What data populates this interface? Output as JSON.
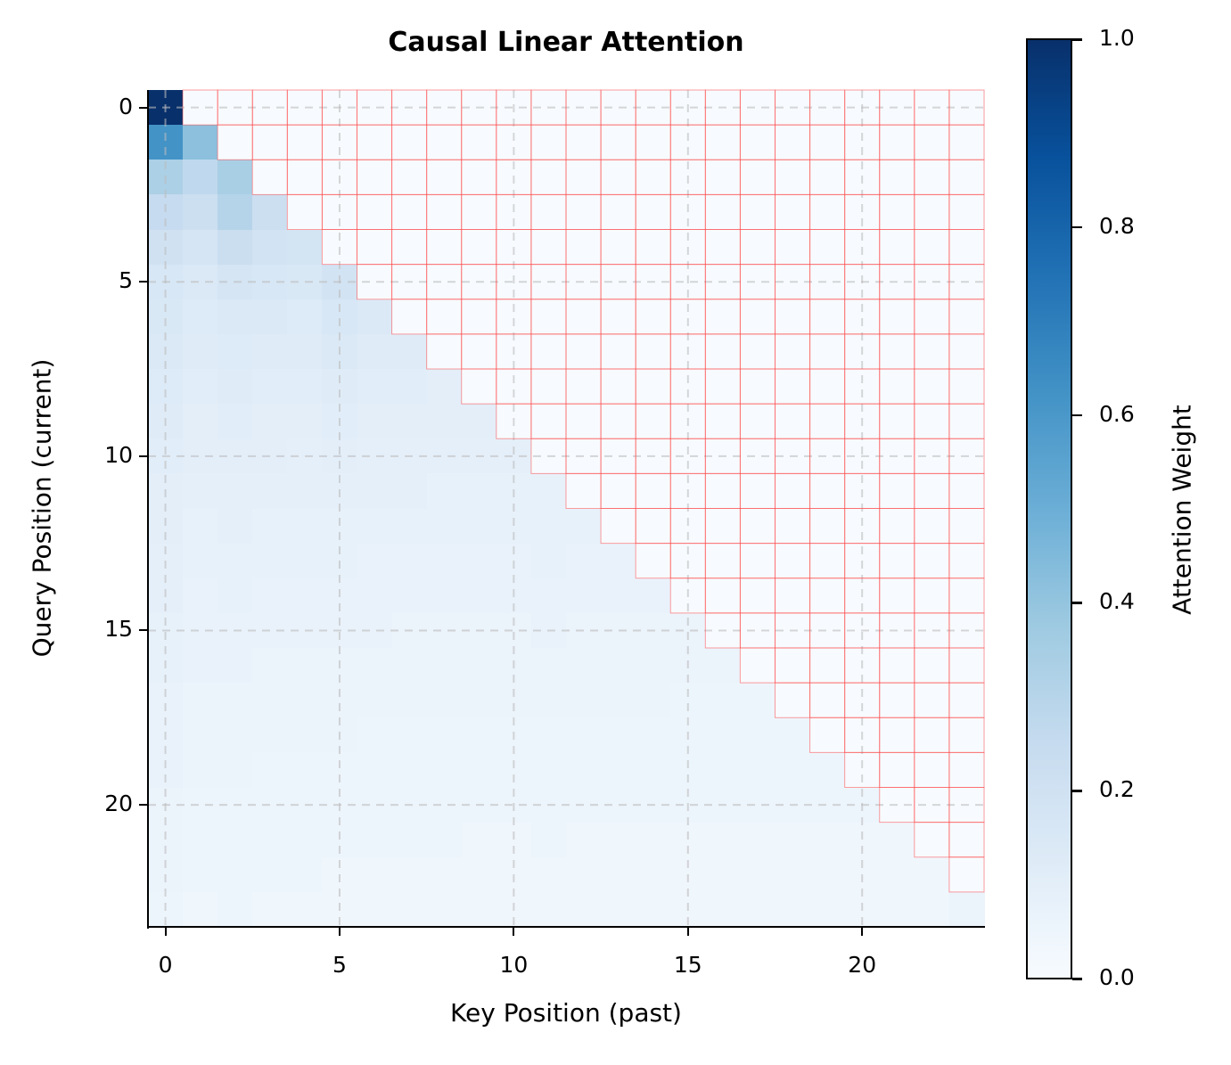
{
  "chart_data": {
    "type": "heatmap",
    "title": "Causal Linear Attention",
    "xlabel": "Key Position (past)",
    "ylabel": "Query Position (current)",
    "x_ticks": [
      0,
      5,
      10,
      15,
      20
    ],
    "y_ticks": [
      0,
      5,
      10,
      15,
      20
    ],
    "size": 24,
    "colormap": "Blues",
    "colorbar": {
      "label": "Attention Weight",
      "ticks": [
        "0.0",
        "0.2",
        "0.4",
        "0.6",
        "0.8",
        "1.0"
      ],
      "range": [
        0.0,
        1.0
      ]
    },
    "grid": {
      "on": true,
      "style": "dashed",
      "color": "#d0d0d0"
    },
    "masked_region": {
      "description": "upper triangle (future keys) masked",
      "edge_color": "#ff4d4d",
      "fill": "#f7fbff"
    },
    "values": [
      [
        1.0
      ],
      [
        0.62,
        0.42
      ],
      [
        0.33,
        0.27,
        0.34
      ],
      [
        0.25,
        0.22,
        0.3,
        0.22
      ],
      [
        0.2,
        0.17,
        0.23,
        0.19,
        0.18
      ],
      [
        0.16,
        0.14,
        0.17,
        0.16,
        0.15,
        0.19
      ],
      [
        0.15,
        0.13,
        0.14,
        0.14,
        0.13,
        0.16,
        0.14
      ],
      [
        0.14,
        0.12,
        0.13,
        0.12,
        0.12,
        0.14,
        0.12,
        0.12
      ],
      [
        0.13,
        0.11,
        0.12,
        0.11,
        0.11,
        0.12,
        0.11,
        0.11,
        0.1
      ],
      [
        0.12,
        0.1,
        0.11,
        0.1,
        0.1,
        0.11,
        0.1,
        0.1,
        0.1,
        0.1
      ],
      [
        0.11,
        0.1,
        0.1,
        0.1,
        0.09,
        0.1,
        0.09,
        0.09,
        0.09,
        0.09,
        0.09
      ],
      [
        0.1,
        0.09,
        0.09,
        0.09,
        0.09,
        0.09,
        0.09,
        0.09,
        0.08,
        0.08,
        0.08,
        0.08
      ],
      [
        0.1,
        0.08,
        0.09,
        0.08,
        0.08,
        0.08,
        0.08,
        0.08,
        0.08,
        0.08,
        0.08,
        0.08,
        0.08
      ],
      [
        0.09,
        0.08,
        0.08,
        0.08,
        0.08,
        0.08,
        0.07,
        0.07,
        0.07,
        0.07,
        0.07,
        0.08,
        0.07,
        0.07
      ],
      [
        0.09,
        0.07,
        0.08,
        0.07,
        0.07,
        0.07,
        0.07,
        0.07,
        0.07,
        0.07,
        0.07,
        0.07,
        0.07,
        0.07,
        0.07
      ],
      [
        0.08,
        0.07,
        0.07,
        0.07,
        0.07,
        0.07,
        0.07,
        0.06,
        0.06,
        0.06,
        0.06,
        0.07,
        0.06,
        0.06,
        0.06,
        0.06
      ],
      [
        0.08,
        0.07,
        0.07,
        0.06,
        0.06,
        0.06,
        0.06,
        0.06,
        0.06,
        0.06,
        0.06,
        0.06,
        0.06,
        0.06,
        0.06,
        0.06,
        0.06
      ],
      [
        0.07,
        0.06,
        0.06,
        0.06,
        0.06,
        0.06,
        0.06,
        0.06,
        0.06,
        0.06,
        0.06,
        0.06,
        0.06,
        0.06,
        0.06,
        0.05,
        0.05,
        0.05
      ],
      [
        0.07,
        0.06,
        0.06,
        0.06,
        0.06,
        0.06,
        0.05,
        0.05,
        0.05,
        0.05,
        0.05,
        0.05,
        0.05,
        0.05,
        0.05,
        0.05,
        0.05,
        0.05,
        0.05
      ],
      [
        0.07,
        0.06,
        0.06,
        0.05,
        0.05,
        0.05,
        0.05,
        0.05,
        0.05,
        0.05,
        0.05,
        0.05,
        0.05,
        0.05,
        0.05,
        0.05,
        0.05,
        0.05,
        0.05,
        0.05
      ],
      [
        0.06,
        0.05,
        0.05,
        0.05,
        0.05,
        0.05,
        0.05,
        0.05,
        0.05,
        0.05,
        0.05,
        0.05,
        0.05,
        0.05,
        0.05,
        0.05,
        0.05,
        0.05,
        0.05,
        0.05,
        0.05
      ],
      [
        0.06,
        0.05,
        0.05,
        0.05,
        0.05,
        0.05,
        0.05,
        0.05,
        0.05,
        0.04,
        0.04,
        0.05,
        0.04,
        0.04,
        0.04,
        0.04,
        0.04,
        0.04,
        0.04,
        0.04,
        0.04,
        0.04
      ],
      [
        0.06,
        0.05,
        0.05,
        0.05,
        0.05,
        0.04,
        0.04,
        0.04,
        0.04,
        0.04,
        0.04,
        0.04,
        0.04,
        0.04,
        0.04,
        0.04,
        0.04,
        0.04,
        0.04,
        0.04,
        0.04,
        0.04,
        0.04
      ],
      [
        0.05,
        0.04,
        0.05,
        0.04,
        0.04,
        0.04,
        0.04,
        0.04,
        0.04,
        0.04,
        0.04,
        0.04,
        0.04,
        0.04,
        0.04,
        0.04,
        0.04,
        0.04,
        0.04,
        0.04,
        0.04,
        0.04,
        0.04,
        0.06
      ]
    ]
  }
}
